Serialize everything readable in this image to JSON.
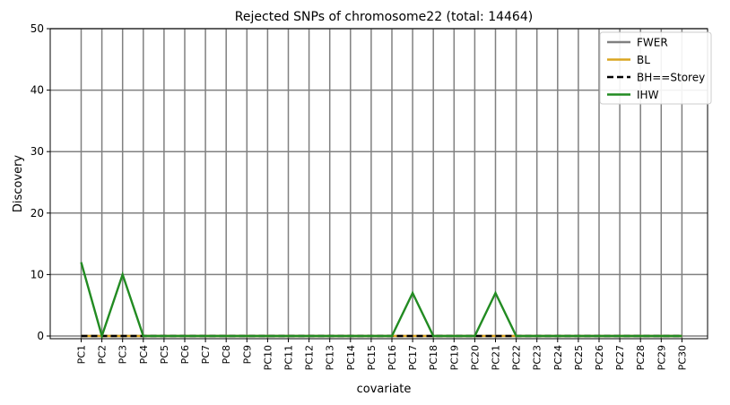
{
  "chart_data": {
    "type": "line",
    "title": "Rejected SNPs of chromosome22 (total: 14464)",
    "xlabel": "covariate",
    "ylabel": "Discovery",
    "ylim": [
      0,
      50
    ],
    "yticks": [
      0,
      10,
      20,
      30,
      40,
      50
    ],
    "grid": true,
    "legend_position": "top-right",
    "categories": [
      "PC1",
      "PC2",
      "PC3",
      "PC4",
      "PC5",
      "PC6",
      "PC7",
      "PC8",
      "PC9",
      "PC10",
      "PC11",
      "PC12",
      "PC13",
      "PC14",
      "PC15",
      "PC16",
      "PC17",
      "PC18",
      "PC19",
      "PC20",
      "PC21",
      "PC22",
      "PC23",
      "PC24",
      "PC25",
      "PC26",
      "PC27",
      "PC28",
      "PC29",
      "PC30"
    ],
    "series": [
      {
        "name": "FWER",
        "color": "#808080",
        "style": "solid",
        "values": [
          0,
          0,
          0,
          0,
          0,
          0,
          0,
          0,
          0,
          0,
          0,
          0,
          0,
          0,
          0,
          0,
          0,
          0,
          0,
          0,
          0,
          0,
          0,
          0,
          0,
          0,
          0,
          0,
          0,
          0
        ]
      },
      {
        "name": "BL",
        "color": "#daa520",
        "style": "solid",
        "values": [
          0,
          0,
          0,
          0,
          0,
          0,
          0,
          0,
          0,
          0,
          0,
          0,
          0,
          0,
          0,
          0,
          0,
          0,
          0,
          0,
          0,
          0,
          0,
          0,
          0,
          0,
          0,
          0,
          0,
          0
        ]
      },
      {
        "name": "BH==Storey",
        "color": "#000000",
        "style": "dashed",
        "values": [
          0,
          0,
          0,
          0,
          0,
          0,
          0,
          0,
          0,
          0,
          0,
          0,
          0,
          0,
          0,
          0,
          0,
          0,
          0,
          0,
          0,
          0,
          0,
          0,
          0,
          0,
          0,
          0,
          0,
          0
        ]
      },
      {
        "name": "IHW",
        "color": "#228b22",
        "style": "solid",
        "values": [
          12,
          0,
          10,
          0,
          0,
          0,
          0,
          0,
          0,
          0,
          0,
          0,
          0,
          0,
          0,
          0,
          7,
          0,
          0,
          0,
          7,
          0,
          0,
          0,
          0,
          0,
          0,
          0,
          0,
          0
        ]
      }
    ]
  }
}
